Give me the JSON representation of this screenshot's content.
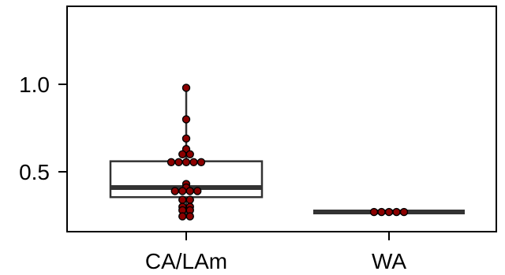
{
  "chart_data": {
    "type": "boxplot",
    "title": "",
    "xlabel": "",
    "ylabel": "",
    "categories": [
      "CA/LAm",
      "WA"
    ],
    "ylim": [
      0.225,
      1.45
    ],
    "yticks": [
      0.5,
      1.0
    ],
    "ytick_labels": [
      "0.5",
      "1.0"
    ],
    "grid": false,
    "legend": "none",
    "colors": {
      "points": "#8b0000",
      "point_outline": "#000000",
      "box": "#333333"
    },
    "groups": [
      {
        "name": "CA/LAm",
        "box": {
          "q1": 0.355,
          "median": 0.41,
          "q3": 0.56,
          "whisker_low": 0.245,
          "whisker_high": 0.98
        },
        "points": [
          0.98,
          0.8,
          0.69,
          0.63,
          0.6,
          0.6,
          0.555,
          0.555,
          0.555,
          0.555,
          0.555,
          0.43,
          0.41,
          0.39,
          0.39,
          0.39,
          0.39,
          0.34,
          0.34,
          0.3,
          0.3,
          0.28,
          0.28,
          0.245,
          0.245
        ]
      },
      {
        "name": "WA",
        "box": {
          "q1": 0.27,
          "median": 0.27,
          "q3": 0.27,
          "whisker_low": 0.27,
          "whisker_high": 0.27
        },
        "points": [
          0.27,
          0.27,
          0.27,
          0.27,
          0.27
        ]
      }
    ]
  }
}
